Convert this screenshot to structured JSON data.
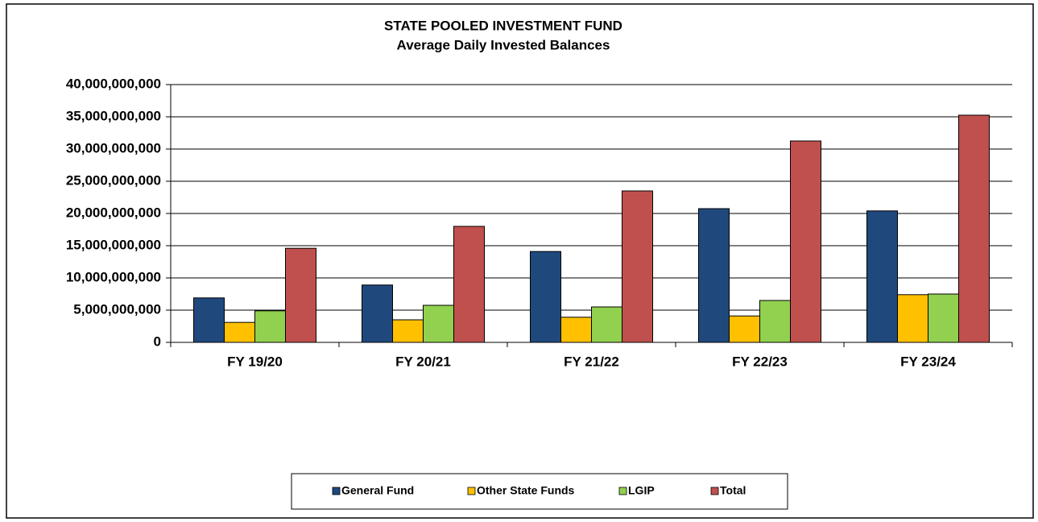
{
  "chart_data": {
    "type": "bar",
    "title": "STATE POOLED INVESTMENT FUND",
    "subtitle": "Average Daily Invested Balances",
    "categories": [
      "FY 19/20",
      "FY 20/21",
      "FY 21/22",
      "FY 22/23",
      "FY 23/24"
    ],
    "series": [
      {
        "name": "General Fund",
        "color": "#1f497d",
        "values": [
          6900000000,
          8900000000,
          14100000000,
          20750000000,
          20400000000
        ]
      },
      {
        "name": "Other State Funds",
        "color": "#ffc000",
        "values": [
          3100000000,
          3500000000,
          3900000000,
          4100000000,
          7400000000
        ]
      },
      {
        "name": "LGIP",
        "color": "#92d050",
        "values": [
          4900000000,
          5750000000,
          5500000000,
          6500000000,
          7500000000
        ]
      },
      {
        "name": "Total",
        "color": "#c0504d",
        "values": [
          14600000000,
          18000000000,
          23500000000,
          31250000000,
          35250000000
        ]
      }
    ],
    "ylim": [
      0,
      40000000000
    ],
    "yticks": [
      0,
      {
        "value": 5000000000,
        "label": "5,000,000,000"
      },
      {
        "value": 10000000000,
        "label": "10,000,000,000"
      },
      {
        "value": 15000000000,
        "label": "15,000,000,000"
      },
      {
        "value": 20000000000,
        "label": "20,000,000,000"
      },
      {
        "value": 25000000000,
        "label": "25,000,000,000"
      },
      {
        "value": 30000000000,
        "label": "30,000,000,000"
      },
      {
        "value": 35000000000,
        "label": "35,000,000,000"
      },
      {
        "value": 40000000000,
        "label": "40,000,000,000"
      }
    ],
    "grid": true,
    "legend": "bottom"
  }
}
